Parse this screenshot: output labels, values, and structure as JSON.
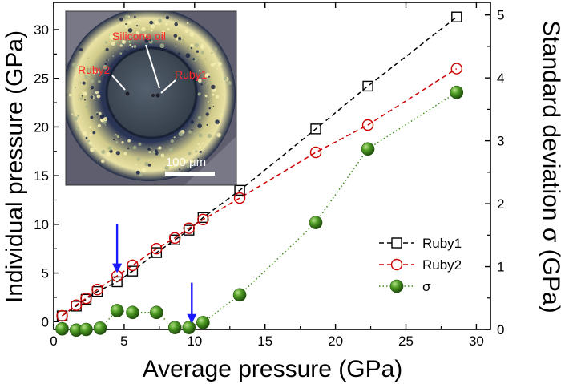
{
  "chart_data": {
    "type": "scatter",
    "xlabel": "Average pressure (GPa)",
    "ylabel": "Individual pressure (GPa)",
    "y2label": "Standard deviation σ (GPa)",
    "xlim": [
      0,
      31
    ],
    "ylim": [
      -0.8,
      32.8
    ],
    "y2lim": [
      0,
      5.2
    ],
    "x_ticks": [
      0,
      5,
      10,
      15,
      20,
      25,
      30
    ],
    "y_ticks": [
      0,
      5,
      10,
      15,
      20,
      25,
      30
    ],
    "y2_ticks": [
      0,
      1,
      2,
      3,
      4,
      5
    ],
    "series": [
      {
        "name": "Ruby1",
        "axis": "left",
        "marker": "square",
        "line": "dashed",
        "color": "#000000",
        "x": [
          0.6,
          1.6,
          2.3,
          3.1,
          4.5,
          5.6,
          7.3,
          8.6,
          9.6,
          10.6,
          13.2,
          18.6,
          22.3,
          28.6
        ],
        "y": [
          0.6,
          1.6,
          2.3,
          3.1,
          4.1,
          5.2,
          7.1,
          8.4,
          9.4,
          10.7,
          13.5,
          19.8,
          24.2,
          31.3
        ]
      },
      {
        "name": "Ruby2",
        "axis": "left",
        "marker": "circle-open",
        "line": "dashed",
        "color": "#cc0000",
        "x": [
          0.6,
          1.6,
          2.3,
          3.1,
          4.5,
          5.6,
          7.3,
          8.6,
          9.6,
          10.6,
          13.2,
          18.6,
          22.3,
          28.6
        ],
        "y": [
          0.6,
          1.7,
          2.4,
          3.3,
          4.7,
          5.8,
          7.5,
          8.6,
          9.6,
          10.5,
          12.7,
          17.4,
          20.2,
          26.0
        ]
      },
      {
        "name": "σ",
        "axis": "right",
        "marker": "circle-filled",
        "line": "dotted",
        "color": "#3d8c1a",
        "x": [
          0.6,
          1.6,
          2.3,
          3.3,
          4.5,
          5.6,
          7.3,
          8.6,
          9.6,
          10.6,
          13.2,
          18.6,
          22.3,
          28.6
        ],
        "y": [
          0.01,
          -0.01,
          0.0,
          0.02,
          0.3,
          0.27,
          0.27,
          0.03,
          0.03,
          0.11,
          0.55,
          1.7,
          2.87,
          3.77
        ]
      }
    ],
    "arrows": [
      {
        "x": 4.5,
        "y_from": 10.0,
        "y_to": 5.0,
        "color": "#1a1aff"
      },
      {
        "x": 9.8,
        "y_from": 4.0,
        "y_to": -0.2,
        "color": "#1a1aff"
      }
    ],
    "legend_placement": "bottom-right",
    "grid": false
  },
  "inset": {
    "labels": {
      "silicone": "Silicone oil",
      "ruby1": "Ruby1",
      "ruby2": "Ruby2",
      "scale": "100 μm"
    },
    "colors": {
      "label_red": "#ff2a2a",
      "ring_yellow": "#e8e4a0",
      "dark_blue": "#1a2440",
      "chamber": "#3d4a58",
      "backdrop": "#6a6a78"
    }
  }
}
